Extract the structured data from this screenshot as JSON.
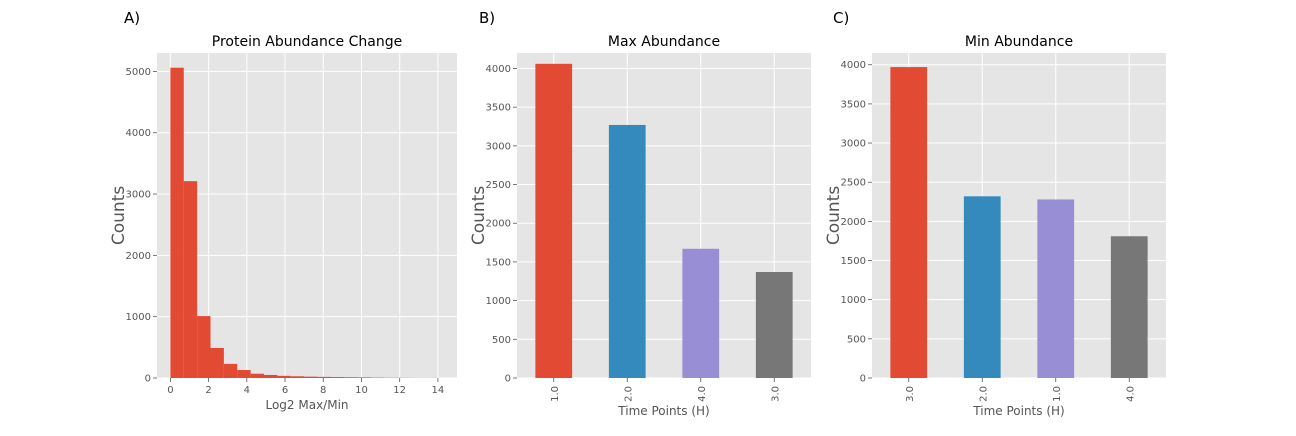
{
  "panels": [
    {
      "letter": "A)"
    },
    {
      "letter": "B)"
    },
    {
      "letter": "C)"
    }
  ],
  "chart_data": [
    {
      "type": "bar",
      "subtype": "histogram",
      "title": "Protein Abundance Change",
      "xlabel": "Log2 Max/Min",
      "ylabel": "Counts",
      "xlim": [
        -0.7,
        15
      ],
      "ylim": [
        0,
        5300
      ],
      "xticks": [
        "0",
        "2",
        "4",
        "6",
        "8",
        "10",
        "12",
        "14"
      ],
      "yticks": [
        "0",
        "1000",
        "2000",
        "3000",
        "4000",
        "5000"
      ],
      "bin_width": 0.7,
      "bin_start": 0,
      "values": [
        5060,
        3210,
        1010,
        490,
        230,
        130,
        70,
        50,
        35,
        28,
        22,
        18,
        15,
        12,
        10,
        6,
        4,
        3,
        2,
        2
      ],
      "color": "#E24A33",
      "grid": true,
      "background": "#E5E5E5"
    },
    {
      "type": "bar",
      "title": "Max Abundance",
      "xlabel": "Time Points (H)",
      "ylabel": "Counts",
      "categories": [
        "1.0",
        "2.0",
        "4.0",
        "3.0"
      ],
      "values": [
        4060,
        3270,
        1670,
        1370
      ],
      "colors": [
        "#E24A33",
        "#348ABD",
        "#988ED5",
        "#777777"
      ],
      "ylim": [
        0,
        4200
      ],
      "yticks": [
        "0",
        "500",
        "1000",
        "1500",
        "2000",
        "2500",
        "3000",
        "3500",
        "4000"
      ],
      "grid": true,
      "background": "#E5E5E5"
    },
    {
      "type": "bar",
      "title": "Min Abundance",
      "xlabel": "Time Points (H)",
      "ylabel": "Counts",
      "categories": [
        "3.0",
        "2.0",
        "1.0",
        "4.0"
      ],
      "values": [
        3970,
        2320,
        2280,
        1810
      ],
      "colors": [
        "#E24A33",
        "#348ABD",
        "#988ED5",
        "#777777"
      ],
      "ylim": [
        0,
        4150
      ],
      "yticks": [
        "0",
        "500",
        "1000",
        "1500",
        "2000",
        "2500",
        "3000",
        "3500",
        "4000"
      ],
      "grid": true,
      "background": "#E5E5E5"
    }
  ]
}
